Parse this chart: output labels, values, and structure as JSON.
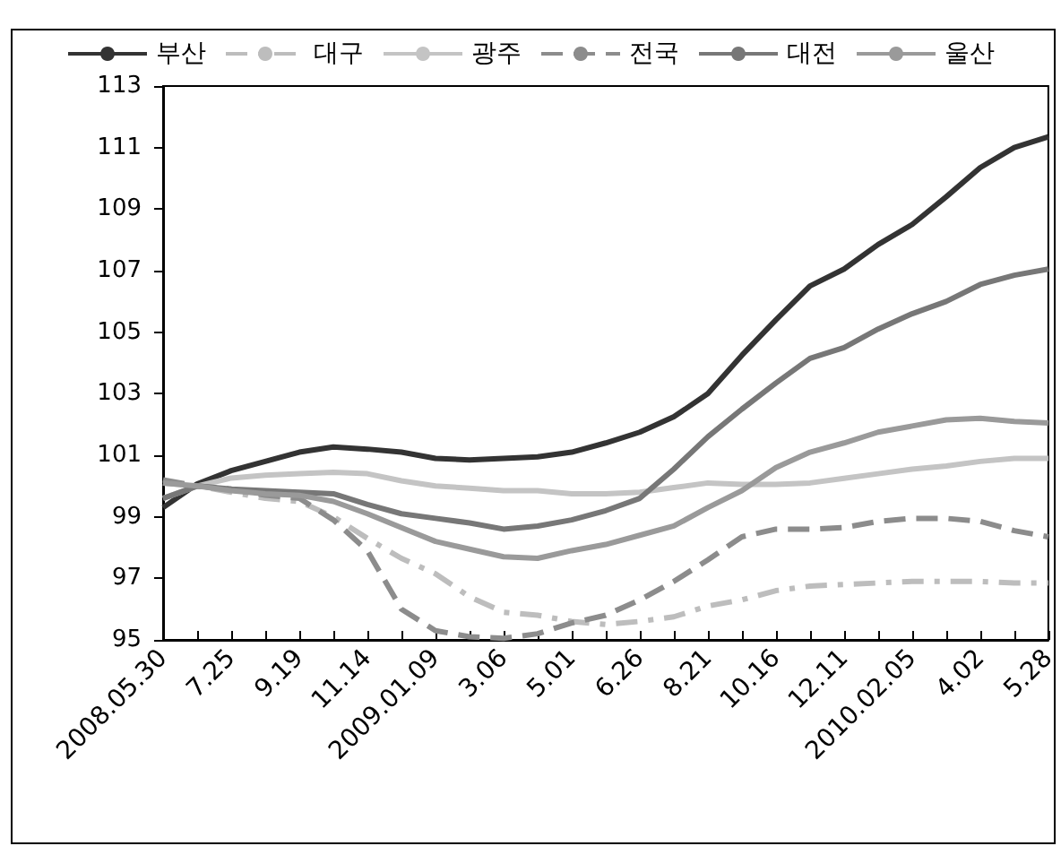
{
  "chart_data": {
    "type": "line",
    "categories": [
      "2008.05.30",
      null,
      "7.25",
      null,
      "9.19",
      null,
      "11.14",
      null,
      "2009.01.09",
      null,
      "3.06",
      null,
      "5.01",
      null,
      "6.26",
      null,
      "8.21",
      null,
      "10.16",
      null,
      "12.11",
      null,
      "2010.02.05",
      null,
      "4.02",
      null,
      "5.28"
    ],
    "series": [
      {
        "name": "부산",
        "color": "#333333",
        "line_style": "solid",
        "values": [
          99.3,
          100.07,
          100.5,
          100.8,
          101.1,
          101.27,
          101.2,
          101.1,
          100.9,
          100.85,
          100.9,
          100.95,
          101.1,
          101.4,
          101.75,
          102.25,
          103.0,
          104.25,
          105.4,
          106.5,
          107.05,
          107.85,
          108.5,
          109.4,
          110.35,
          111.0,
          111.35
        ]
      },
      {
        "name": "대구",
        "color": "#bdbdbd",
        "line_style": "dashdot",
        "values": [
          100.1,
          100.0,
          99.8,
          99.6,
          99.5,
          99.0,
          98.3,
          97.65,
          97.15,
          96.4,
          95.9,
          95.8,
          95.6,
          95.5,
          95.6,
          95.75,
          96.1,
          96.3,
          96.6,
          96.75,
          96.8,
          96.85,
          96.9,
          96.9,
          96.9,
          96.85,
          96.85
        ]
      },
      {
        "name": "광주",
        "color": "#c4c4c4",
        "line_style": "solid",
        "values": [
          99.6,
          100.0,
          100.26,
          100.35,
          100.4,
          100.45,
          100.4,
          100.17,
          100.0,
          99.93,
          99.85,
          99.85,
          99.75,
          99.75,
          99.8,
          99.95,
          100.1,
          100.05,
          100.05,
          100.1,
          100.25,
          100.4,
          100.55,
          100.65,
          100.8,
          100.9,
          100.9
        ]
      },
      {
        "name": "전국",
        "color": "#8c8c8c",
        "line_style": "dashed",
        "values": [
          100.2,
          100.0,
          99.9,
          99.7,
          99.6,
          98.9,
          97.9,
          96.0,
          95.3,
          95.1,
          95.05,
          95.2,
          95.55,
          95.8,
          96.3,
          96.9,
          97.6,
          98.35,
          98.6,
          98.6,
          98.65,
          98.85,
          98.95,
          98.95,
          98.85,
          98.55,
          98.35
        ]
      },
      {
        "name": "대전",
        "color": "#777777",
        "line_style": "solid",
        "values": [
          99.6,
          100.0,
          99.9,
          99.85,
          99.8,
          99.75,
          99.4,
          99.1,
          98.95,
          98.8,
          98.6,
          98.7,
          98.9,
          99.2,
          99.6,
          100.55,
          101.6,
          102.5,
          103.35,
          104.15,
          104.5,
          105.1,
          105.6,
          106.0,
          106.55,
          106.85,
          107.05
        ]
      },
      {
        "name": "울산",
        "color": "#9a9a9a",
        "line_style": "solid",
        "values": [
          100.1,
          100.0,
          99.85,
          99.75,
          99.7,
          99.5,
          99.1,
          98.65,
          98.2,
          97.95,
          97.7,
          97.65,
          97.9,
          98.1,
          98.4,
          98.7,
          99.3,
          99.85,
          100.6,
          101.1,
          101.4,
          101.75,
          101.95,
          102.15,
          102.2,
          102.1,
          102.05
        ]
      }
    ],
    "ylim": [
      95,
      113
    ],
    "yticks": [
      95,
      97,
      99,
      101,
      103,
      105,
      107,
      109,
      111,
      113
    ],
    "grid": false,
    "legend": "top",
    "marker": "none"
  }
}
